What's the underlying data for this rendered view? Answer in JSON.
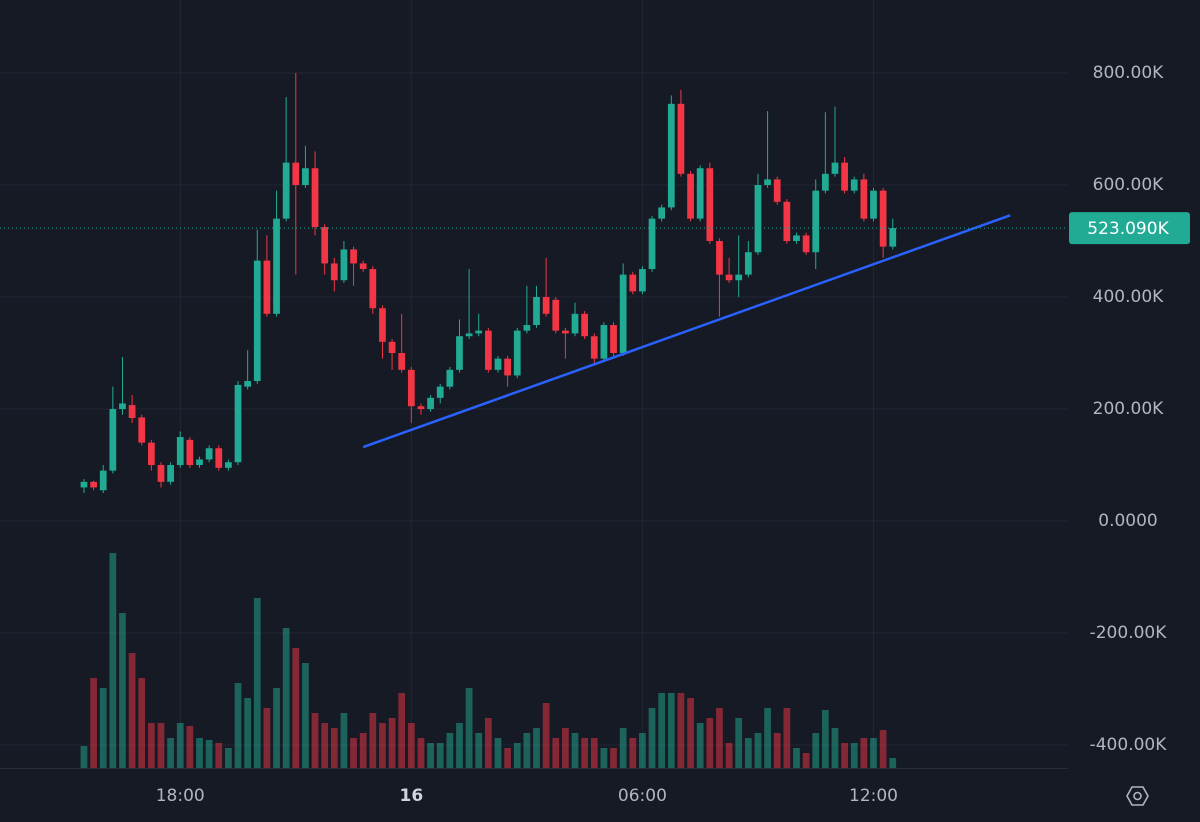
{
  "chart_data": {
    "type": "candlestick",
    "xlim": [
      -8.72,
      102.2
    ],
    "xticks": [
      {
        "value": 10,
        "label": "18:00"
      },
      {
        "value": 34,
        "label": "16"
      },
      {
        "value": 58,
        "label": "06:00"
      },
      {
        "value": 82,
        "label": "12:00"
      }
    ],
    "ylim": [
      -441,
      930.4
    ],
    "yticks": [
      {
        "value": 800,
        "label": "800.00K"
      },
      {
        "value": 600,
        "label": "600.00K"
      },
      {
        "value": 400,
        "label": "400.00K"
      },
      {
        "value": 200,
        "label": "200.00K"
      },
      {
        "value": 0,
        "label": "0.0000"
      },
      {
        "value": -200,
        "label": "-200.00K"
      },
      {
        "value": -400,
        "label": "-400.00K"
      }
    ],
    "grid": true,
    "up_color": "#22ab94",
    "down_color": "#f23645",
    "open": [
      60,
      70,
      55,
      90,
      200,
      207,
      185,
      140,
      100,
      70,
      100,
      145,
      100,
      110,
      130,
      95,
      105,
      240,
      250,
      465,
      370,
      540,
      640,
      600,
      630,
      525,
      460,
      430,
      485,
      460,
      450,
      380,
      320,
      300,
      270,
      205,
      200,
      220,
      240,
      270,
      330,
      335,
      340,
      270,
      290,
      260,
      340,
      350,
      400,
      395,
      340,
      335,
      370,
      330,
      290,
      350,
      300,
      440,
      410,
      450,
      540,
      560,
      745,
      620,
      540,
      630,
      500,
      440,
      430,
      440,
      480,
      600,
      610,
      570,
      500,
      510,
      480,
      590,
      620,
      640,
      590,
      610,
      540,
      590,
      490
    ],
    "high": [
      75,
      72,
      100,
      240,
      293,
      225,
      190,
      145,
      105,
      105,
      160,
      150,
      115,
      135,
      135,
      110,
      250,
      305,
      520,
      510,
      590,
      757,
      800,
      670,
      660,
      530,
      470,
      500,
      490,
      465,
      455,
      385,
      325,
      370,
      275,
      210,
      225,
      245,
      275,
      360,
      450,
      370,
      345,
      295,
      295,
      345,
      420,
      420,
      470,
      400,
      345,
      390,
      375,
      335,
      355,
      355,
      460,
      445,
      455,
      545,
      565,
      760,
      770,
      625,
      635,
      640,
      505,
      470,
      510,
      500,
      620,
      732,
      615,
      575,
      515,
      515,
      610,
      730,
      740,
      650,
      615,
      620,
      595,
      595,
      540
    ],
    "low": [
      50,
      55,
      50,
      85,
      190,
      175,
      135,
      90,
      60,
      65,
      95,
      95,
      95,
      105,
      90,
      90,
      100,
      235,
      245,
      365,
      365,
      535,
      440,
      595,
      510,
      440,
      410,
      425,
      420,
      445,
      370,
      290,
      270,
      265,
      175,
      190,
      195,
      210,
      235,
      265,
      325,
      330,
      265,
      265,
      240,
      255,
      335,
      345,
      365,
      335,
      290,
      330,
      325,
      280,
      285,
      290,
      295,
      405,
      405,
      445,
      535,
      555,
      615,
      535,
      535,
      495,
      365,
      425,
      400,
      435,
      475,
      595,
      565,
      495,
      495,
      475,
      450,
      585,
      615,
      585,
      585,
      535,
      535,
      470,
      485
    ],
    "close": [
      70,
      60,
      90,
      200,
      210,
      184,
      140,
      100,
      70,
      100,
      150,
      100,
      110,
      130,
      95,
      105,
      243,
      250,
      465,
      370,
      540,
      640,
      600,
      630,
      525,
      460,
      430,
      485,
      460,
      450,
      380,
      320,
      300,
      270,
      205,
      200,
      220,
      240,
      270,
      330,
      335,
      340,
      270,
      290,
      260,
      340,
      350,
      400,
      370,
      340,
      335,
      370,
      330,
      290,
      350,
      300,
      440,
      410,
      450,
      540,
      560,
      745,
      620,
      540,
      630,
      500,
      440,
      430,
      440,
      480,
      600,
      610,
      570,
      500,
      510,
      480,
      590,
      620,
      640,
      590,
      610,
      540,
      590,
      490,
      523.09
    ],
    "volume": [
      22,
      90,
      80,
      215,
      155,
      115,
      90,
      45,
      45,
      30,
      45,
      42,
      30,
      28,
      25,
      20,
      85,
      70,
      170,
      60,
      80,
      140,
      120,
      105,
      55,
      45,
      40,
      55,
      30,
      35,
      55,
      45,
      50,
      75,
      45,
      30,
      25,
      25,
      35,
      45,
      80,
      35,
      50,
      30,
      20,
      25,
      35,
      40,
      65,
      30,
      40,
      35,
      30,
      30,
      20,
      20,
      40,
      30,
      35,
      60,
      75,
      75,
      75,
      70,
      45,
      50,
      60,
      25,
      50,
      30,
      35,
      60,
      35,
      60,
      20,
      15,
      35,
      58,
      40,
      25,
      25,
      30,
      30,
      38,
      10
    ],
    "last_price": {
      "value": 523.09,
      "label": "523.090K"
    },
    "trendline": {
      "x": [
        29,
        96.2
      ],
      "y": [
        132,
        546
      ],
      "color": "#2962ff"
    }
  }
}
